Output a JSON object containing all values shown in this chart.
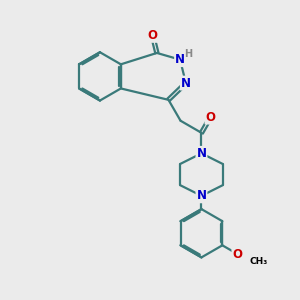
{
  "bg_color": "#ebebeb",
  "bond_color": "#3a7a7a",
  "atom_N": "#0000cc",
  "atom_O": "#cc0000",
  "atom_H": "#888888",
  "atom_C": "#000000",
  "bw": 1.6,
  "dbo": 0.055,
  "fs": 8.5,
  "fig_size": [
    3.0,
    3.0
  ],
  "dpi": 100,
  "xlim": [
    0,
    10
  ],
  "ylim": [
    0,
    10
  ],
  "bl": 0.82
}
